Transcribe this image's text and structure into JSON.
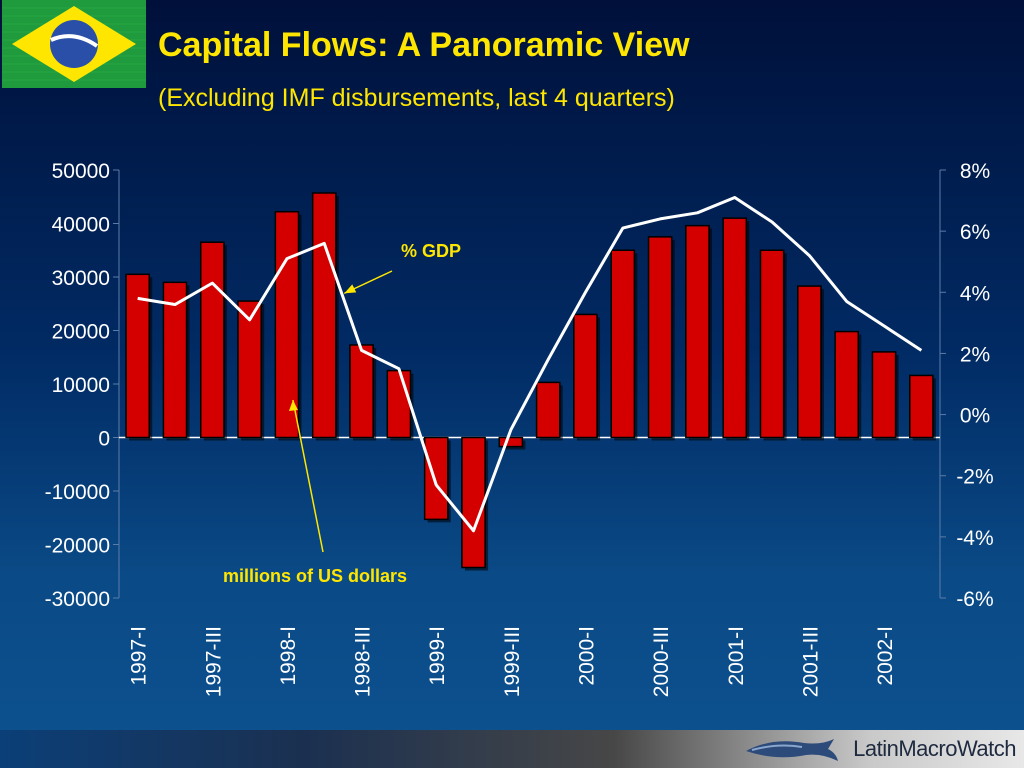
{
  "slide": {
    "title": "Capital Flows: A Panoramic View",
    "subtitle": "(Excluding IMF disbursements, last 4 quarters)",
    "logo_text": "LatinMacroWatch"
  },
  "colors": {
    "background": "#012a63",
    "title": "#ffe600",
    "bar_fill": "#d40000",
    "bar_outline": "#000000",
    "line": "#ffffff",
    "annotation": "#ffe600",
    "axis_text": "#ffffff"
  },
  "chart_data": {
    "type": "bar",
    "categories": [
      "1997-I",
      "1997-II",
      "1997-III",
      "1997-IV",
      "1998-I",
      "1998-II",
      "1998-III",
      "1998-IV",
      "1999-I",
      "1999-II",
      "1999-III",
      "1999-IV",
      "2000-I",
      "2000-II",
      "2000-III",
      "2000-IV",
      "2001-I",
      "2001-II",
      "2001-III",
      "2001-IV",
      "2002-I",
      "2002-II"
    ],
    "x_tick_labels": [
      "1997-I",
      "",
      "1997-III",
      "",
      "1998-I",
      "",
      "1998-III",
      "",
      "1999-I",
      "",
      "1999-III",
      "",
      "2000-I",
      "",
      "2000-III",
      "",
      "2001-I",
      "",
      "2001-III",
      "",
      "2002-I",
      ""
    ],
    "series": [
      {
        "axis": "left",
        "type": "bar",
        "values": [
          30500,
          29000,
          36500,
          25500,
          42200,
          45700,
          17300,
          12500,
          -15300,
          -24300,
          -1700,
          10300,
          23000,
          35000,
          37500,
          39600,
          41000,
          35000,
          28300,
          19800,
          16000,
          11600
        ]
      },
      {
        "axis": "right",
        "type": "line",
        "values": [
          3.8,
          3.6,
          4.3,
          3.1,
          5.1,
          5.6,
          2.1,
          1.5,
          -2.3,
          -3.8,
          -0.5,
          1.8,
          4.0,
          6.1,
          6.4,
          6.6,
          7.1,
          6.3,
          5.2,
          3.7,
          2.9,
          2.1
        ]
      }
    ],
    "y_left": {
      "min": -30000,
      "max": 50000,
      "ticks": [
        "50000",
        "40000",
        "30000",
        "20000",
        "10000",
        "0",
        "-10000",
        "-20000",
        "-30000"
      ]
    },
    "y_right": {
      "min": -6,
      "max": 8,
      "ticks": [
        "8%",
        "6%",
        "4%",
        "2%",
        "0%",
        "-2%",
        "-4%",
        "-6%"
      ]
    },
    "annotations": [
      {
        "label": "% GDP",
        "points_to": "line",
        "category": "1998-II"
      },
      {
        "label": "millions of US dollars",
        "points_to": "bars",
        "category": "1998-I"
      }
    ],
    "grid": false
  }
}
